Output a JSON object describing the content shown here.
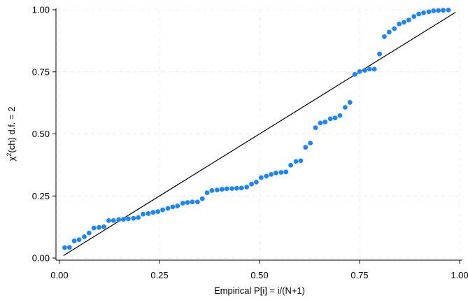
{
  "chart_data": {
    "type": "scatter",
    "xlabel": "Empirical P[i] = i/(N+1)",
    "ylabel_parts": {
      "pre": "χ",
      "sup": "2",
      "post": "(ch) d.f. = 2"
    },
    "xlim": [
      0,
      1
    ],
    "ylim": [
      0,
      1
    ],
    "x_ticks": [
      {
        "value": 0.0,
        "label": "0.00"
      },
      {
        "value": 0.25,
        "label": "0.25"
      },
      {
        "value": 0.5,
        "label": "0.50"
      },
      {
        "value": 0.75,
        "label": "0.75"
      },
      {
        "value": 1.0,
        "label": "1.00"
      }
    ],
    "y_ticks": [
      {
        "value": 0.0,
        "label": "0.00"
      },
      {
        "value": 0.25,
        "label": "0.25"
      },
      {
        "value": 0.5,
        "label": "0.50"
      },
      {
        "value": 0.75,
        "label": "0.75"
      },
      {
        "value": 1.0,
        "label": "1.00"
      }
    ],
    "grid": true,
    "reference_line": {
      "from": [
        0.01,
        0.01
      ],
      "to": [
        0.99,
        0.99
      ],
      "color": "#000000"
    },
    "series": [
      {
        "color": "#1a85ff",
        "points": [
          [
            0.013,
            0.042
          ],
          [
            0.025,
            0.043
          ],
          [
            0.037,
            0.069
          ],
          [
            0.049,
            0.074
          ],
          [
            0.062,
            0.086
          ],
          [
            0.074,
            0.101
          ],
          [
            0.086,
            0.121
          ],
          [
            0.099,
            0.123
          ],
          [
            0.111,
            0.126
          ],
          [
            0.123,
            0.151
          ],
          [
            0.135,
            0.151
          ],
          [
            0.148,
            0.155
          ],
          [
            0.16,
            0.156
          ],
          [
            0.172,
            0.158
          ],
          [
            0.185,
            0.16
          ],
          [
            0.197,
            0.163
          ],
          [
            0.209,
            0.177
          ],
          [
            0.222,
            0.179
          ],
          [
            0.234,
            0.184
          ],
          [
            0.246,
            0.187
          ],
          [
            0.258,
            0.194
          ],
          [
            0.271,
            0.2
          ],
          [
            0.283,
            0.206
          ],
          [
            0.295,
            0.21
          ],
          [
            0.308,
            0.221
          ],
          [
            0.32,
            0.224
          ],
          [
            0.332,
            0.226
          ],
          [
            0.345,
            0.226
          ],
          [
            0.357,
            0.239
          ],
          [
            0.369,
            0.263
          ],
          [
            0.381,
            0.272
          ],
          [
            0.394,
            0.274
          ],
          [
            0.406,
            0.277
          ],
          [
            0.418,
            0.279
          ],
          [
            0.431,
            0.28
          ],
          [
            0.443,
            0.281
          ],
          [
            0.455,
            0.282
          ],
          [
            0.468,
            0.286
          ],
          [
            0.48,
            0.298
          ],
          [
            0.492,
            0.306
          ],
          [
            0.504,
            0.324
          ],
          [
            0.517,
            0.33
          ],
          [
            0.529,
            0.337
          ],
          [
            0.541,
            0.343
          ],
          [
            0.554,
            0.345
          ],
          [
            0.566,
            0.347
          ],
          [
            0.578,
            0.374
          ],
          [
            0.591,
            0.389
          ],
          [
            0.603,
            0.392
          ],
          [
            0.615,
            0.446
          ],
          [
            0.627,
            0.463
          ],
          [
            0.64,
            0.525
          ],
          [
            0.652,
            0.544
          ],
          [
            0.664,
            0.548
          ],
          [
            0.677,
            0.561
          ],
          [
            0.689,
            0.564
          ],
          [
            0.701,
            0.574
          ],
          [
            0.714,
            0.607
          ],
          [
            0.726,
            0.627
          ],
          [
            0.738,
            0.74
          ],
          [
            0.75,
            0.751
          ],
          [
            0.763,
            0.756
          ],
          [
            0.775,
            0.761
          ],
          [
            0.787,
            0.761
          ],
          [
            0.8,
            0.822
          ],
          [
            0.812,
            0.892
          ],
          [
            0.824,
            0.91
          ],
          [
            0.837,
            0.924
          ],
          [
            0.849,
            0.943
          ],
          [
            0.861,
            0.95
          ],
          [
            0.873,
            0.959
          ],
          [
            0.886,
            0.973
          ],
          [
            0.898,
            0.983
          ],
          [
            0.91,
            0.988
          ],
          [
            0.923,
            0.992
          ],
          [
            0.935,
            0.996
          ],
          [
            0.947,
            0.997
          ],
          [
            0.959,
            0.998
          ],
          [
            0.972,
            0.999
          ]
        ]
      }
    ]
  }
}
